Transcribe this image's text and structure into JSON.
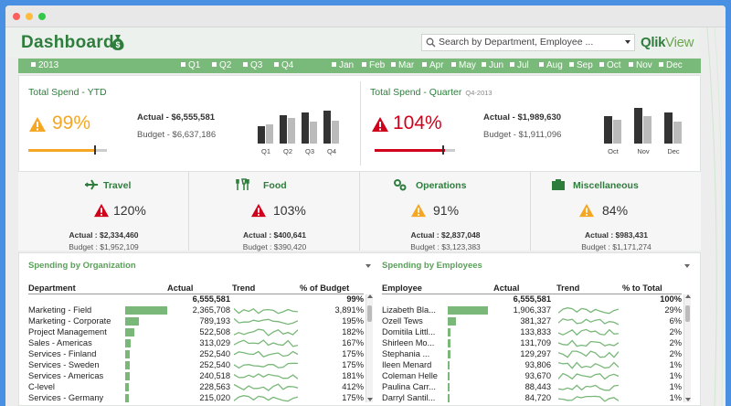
{
  "header": {
    "title": "Dashboard",
    "search_placeholder": "Search by Department, Employee ...",
    "logo_main": "Qlik",
    "logo_sub": "View"
  },
  "filters": {
    "year": "2013",
    "quarters": [
      "Q1",
      "Q2",
      "Q3",
      "Q4"
    ],
    "months": [
      "Jan",
      "Feb",
      "Mar",
      "Apr",
      "May",
      "Jun",
      "Jul",
      "Aug",
      "Sep",
      "Oct",
      "Nov",
      "Dec"
    ]
  },
  "colors": {
    "brand_green": "#2e7d3c",
    "bar_green": "#7ab87a",
    "warning_orange": "#f5a623",
    "alert_red": "#d0021b"
  },
  "ytd": {
    "title": "Total Spend - YTD",
    "pct": "99%",
    "status": "warning",
    "actual": "Actual - $6,555,581",
    "budget": "Budget - $6,637,186",
    "progress": 0.99,
    "chart_labels": [
      "Q1",
      "Q2",
      "Q3",
      "Q4"
    ]
  },
  "quarter": {
    "title": "Total Spend - Quarter",
    "subtitle": "Q4-2013",
    "pct": "104%",
    "status": "alert",
    "actual": "Actual - $1,989,630",
    "budget": "Budget - $1,911,096",
    "progress": 1.04,
    "chart_labels": [
      "Oct",
      "Nov",
      "Dec"
    ]
  },
  "categories": [
    {
      "name": "Travel",
      "icon": "airplane-icon",
      "pct": "120%",
      "status": "alert",
      "actual": "Actual : $2,334,460",
      "budget": "Budget : $1,952,109"
    },
    {
      "name": "Food",
      "icon": "food-icon",
      "pct": "103%",
      "status": "alert",
      "actual": "Actual : $400,641",
      "budget": "Budget : $390,420"
    },
    {
      "name": "Operations",
      "icon": "gears-icon",
      "pct": "91%",
      "status": "warning",
      "actual": "Actual : $2,837,048",
      "budget": "Budget : $3,123,383"
    },
    {
      "name": "Miscellaneous",
      "icon": "misc-icon",
      "pct": "84%",
      "status": "warning",
      "actual": "Actual : $983,431",
      "budget": "Budget : $1,171,274"
    }
  ],
  "org_table": {
    "title": "Spending by Organization",
    "headers": [
      "Department",
      "Actual",
      "Trend",
      "% of Budget"
    ],
    "total": {
      "actual": "6,555,581",
      "pct": "99%"
    },
    "rows": [
      {
        "name": "Marketing - Field",
        "actual": "2,365,708",
        "pct": "3,891%",
        "bar": 1.0
      },
      {
        "name": "Marketing - Corporate",
        "actual": "789,193",
        "pct": "195%",
        "bar": 0.33
      },
      {
        "name": "Project Management",
        "actual": "522,508",
        "pct": "182%",
        "bar": 0.22
      },
      {
        "name": "Sales - Americas",
        "actual": "313,029",
        "pct": "167%",
        "bar": 0.13
      },
      {
        "name": "Services - Finland",
        "actual": "252,540",
        "pct": "175%",
        "bar": 0.107
      },
      {
        "name": "Services - Sweden",
        "actual": "252,540",
        "pct": "175%",
        "bar": 0.107
      },
      {
        "name": "Services - Americas",
        "actual": "240,518",
        "pct": "181%",
        "bar": 0.1
      },
      {
        "name": "C-level",
        "actual": "228,563",
        "pct": "412%",
        "bar": 0.097
      },
      {
        "name": "Services - Germany",
        "actual": "215,020",
        "pct": "175%",
        "bar": 0.091
      }
    ]
  },
  "emp_table": {
    "title": "Spending by Employees",
    "headers": [
      "Employee",
      "Actual",
      "Trend",
      "% to Total"
    ],
    "total": {
      "actual": "6,555,581",
      "pct": "100%"
    },
    "rows": [
      {
        "name": "Lizabeth Bla...",
        "actual": "1,906,337",
        "pct": "29%",
        "bar": 1.0
      },
      {
        "name": "Ozell Tews",
        "actual": "381,327",
        "pct": "6%",
        "bar": 0.2
      },
      {
        "name": "Domitila Littl...",
        "actual": "133,833",
        "pct": "2%",
        "bar": 0.07
      },
      {
        "name": "Shirleen Mo...",
        "actual": "131,709",
        "pct": "2%",
        "bar": 0.069
      },
      {
        "name": "Stephania ...",
        "actual": "129,297",
        "pct": "2%",
        "bar": 0.068
      },
      {
        "name": "Ileen Menard",
        "actual": "93,806",
        "pct": "1%",
        "bar": 0.049
      },
      {
        "name": "Coleman Helle",
        "actual": "93,670",
        "pct": "1%",
        "bar": 0.049
      },
      {
        "name": "Paulina Carr...",
        "actual": "88,443",
        "pct": "1%",
        "bar": 0.046
      },
      {
        "name": "Darryl Santil...",
        "actual": "84,720",
        "pct": "1%",
        "bar": 0.044
      }
    ]
  }
}
